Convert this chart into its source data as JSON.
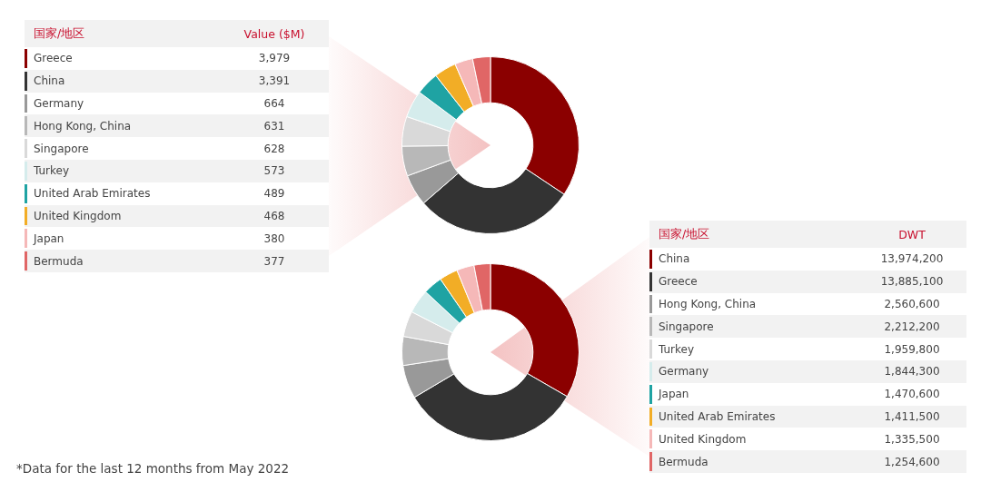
{
  "chart_data": [
    {
      "type": "donut",
      "legend": "left",
      "legend_title": "国家/地区",
      "ylabel": "Value ($M)",
      "value_labels": [
        "3,979",
        "3,391",
        "664",
        "631",
        "628",
        "573",
        "489",
        "468",
        "380",
        "377"
      ],
      "categories": [
        "Greece",
        "China",
        "Germany",
        "Hong Kong, China",
        "Singapore",
        "Turkey",
        "United Arab Emirates",
        "United Kingdom",
        "Japan",
        "Bermuda"
      ],
      "values": [
        3979,
        3391,
        664,
        631,
        628,
        573,
        489,
        468,
        380,
        377
      ],
      "colors": [
        "#8b0000",
        "#333333",
        "#999999",
        "#b8b8b8",
        "#d9d9d9",
        "#d5ecec",
        "#1fa3a3",
        "#f2ad26",
        "#f5b8b8",
        "#e06666"
      ]
    },
    {
      "type": "donut",
      "legend": "right",
      "legend_title": "国家/地区",
      "ylabel": "DWT",
      "value_labels": [
        "13,974,200",
        "13,885,100",
        "2,560,600",
        "2,212,200",
        "1,959,800",
        "1,844,300",
        "1,470,600",
        "1,411,500",
        "1,335,500",
        "1,254,600"
      ],
      "categories": [
        "China",
        "Greece",
        "Hong Kong, China",
        "Singapore",
        "Turkey",
        "Germany",
        "Japan",
        "United Arab Emirates",
        "United Kingdom",
        "Bermuda"
      ],
      "values": [
        13974200,
        13885100,
        2560600,
        2212200,
        1959800,
        1844300,
        1470600,
        1411500,
        1335500,
        1254600
      ],
      "colors": [
        "#8b0000",
        "#333333",
        "#999999",
        "#b8b8b8",
        "#d9d9d9",
        "#d5ecec",
        "#1fa3a3",
        "#f2ad26",
        "#f5b8b8",
        "#e06666"
      ],
      "annotations": [
        "*Data for the last 12 months from May 2022"
      ]
    }
  ]
}
